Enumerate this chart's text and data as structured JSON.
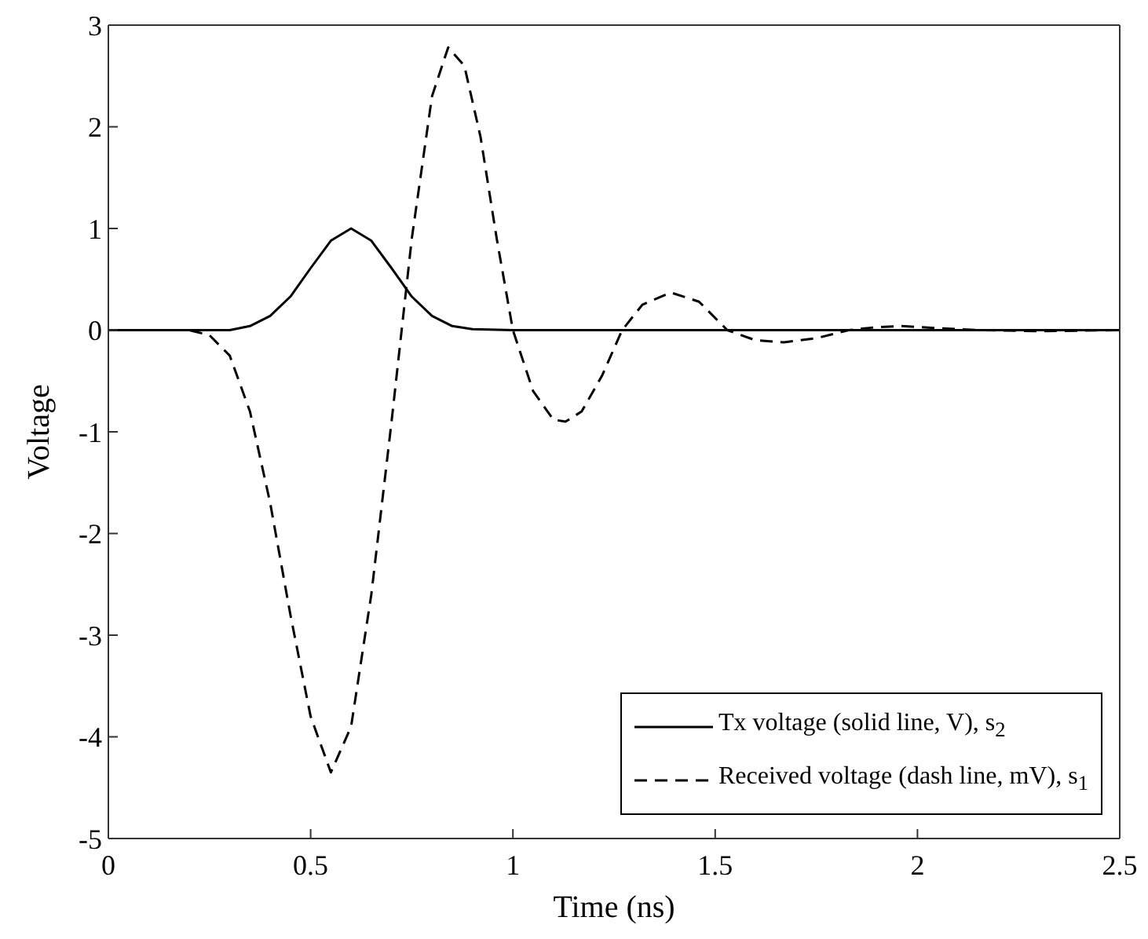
{
  "chart_data": {
    "type": "line",
    "xlabel": "Time (ns)",
    "ylabel": "Voltage",
    "xlim": [
      0,
      2.5
    ],
    "ylim": [
      -5,
      3
    ],
    "xticks": [
      0,
      0.5,
      1,
      1.5,
      2,
      2.5
    ],
    "yticks": [
      -5,
      -4,
      -3,
      -2,
      -1,
      0,
      1,
      2,
      3
    ],
    "grid": false,
    "legend": "bottom right",
    "marker": "none",
    "series": [
      {
        "name": "Tx voltage (solid line, V), s$_{2}$",
        "color": "#000000",
        "line_style": "solid",
        "x": [
          0,
          0.1,
          0.2,
          0.3,
          0.35,
          0.4,
          0.45,
          0.5,
          0.55,
          0.6,
          0.65,
          0.7,
          0.75,
          0.8,
          0.85,
          0.9,
          1.0,
          1.5,
          2.0,
          2.5
        ],
        "values": [
          0,
          0,
          0,
          0,
          0.04,
          0.14,
          0.33,
          0.61,
          0.88,
          1,
          0.88,
          0.61,
          0.33,
          0.14,
          0.04,
          0.01,
          0,
          0,
          0,
          0
        ]
      },
      {
        "name": "Received voltage (dash line, mV), s$_{1}$",
        "color": "#000000",
        "line_style": "dashed",
        "x": [
          0,
          0.1,
          0.2,
          0.25,
          0.3,
          0.35,
          0.4,
          0.45,
          0.5,
          0.55,
          0.6,
          0.65,
          0.7,
          0.75,
          0.8,
          0.84,
          0.88,
          0.92,
          0.96,
          1.0,
          1.05,
          1.1,
          1.13,
          1.17,
          1.22,
          1.27,
          1.32,
          1.39,
          1.46,
          1.53,
          1.6,
          1.67,
          1.75,
          1.83,
          1.9,
          1.96,
          2.05,
          2.15,
          2.3,
          2.5
        ],
        "values": [
          0,
          0,
          0,
          -0.05,
          -0.25,
          -0.8,
          -1.7,
          -2.8,
          -3.8,
          -4.35,
          -3.9,
          -2.6,
          -0.9,
          0.9,
          2.3,
          2.78,
          2.6,
          1.9,
          0.9,
          0,
          -0.6,
          -0.88,
          -0.9,
          -0.8,
          -0.45,
          0,
          0.25,
          0.37,
          0.28,
          0,
          -0.1,
          -0.12,
          -0.08,
          0,
          0.03,
          0.04,
          0.02,
          0,
          -0.01,
          0
        ]
      }
    ]
  }
}
